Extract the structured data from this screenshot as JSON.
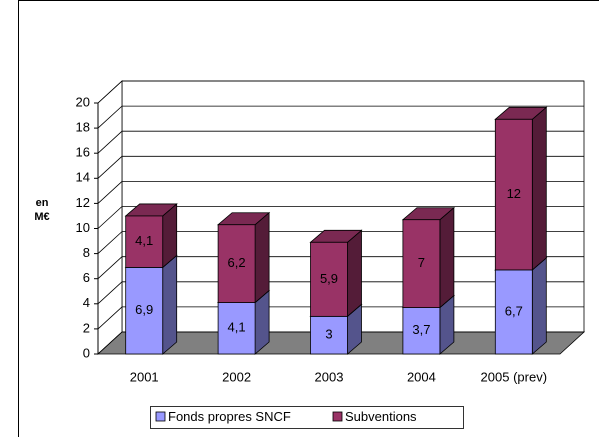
{
  "chart_data": {
    "type": "stacked-bar-3d",
    "ylabel": [
      "en",
      "M€"
    ],
    "categories": [
      "2001",
      "2002",
      "2003",
      "2004",
      "2005 (prev)"
    ],
    "series": [
      {
        "name": "Fonds propres SNCF",
        "color": "#9999ff",
        "values": [
          6.9,
          4.1,
          3,
          3.7,
          6.7
        ],
        "value_labels": [
          "6,9",
          "4,1",
          "3",
          "3,7",
          "6,7"
        ]
      },
      {
        "name": "Subventions",
        "color": "#993366",
        "values": [
          4.1,
          6.2,
          5.9,
          7,
          12
        ],
        "value_labels": [
          "4,1",
          "6,2",
          "5,9",
          "7",
          "12"
        ]
      }
    ],
    "ylim": [
      0,
      20
    ],
    "yticks": [
      0,
      2,
      4,
      6,
      8,
      10,
      12,
      14,
      16,
      18,
      20
    ],
    "grid": true,
    "legend": "bottom"
  }
}
